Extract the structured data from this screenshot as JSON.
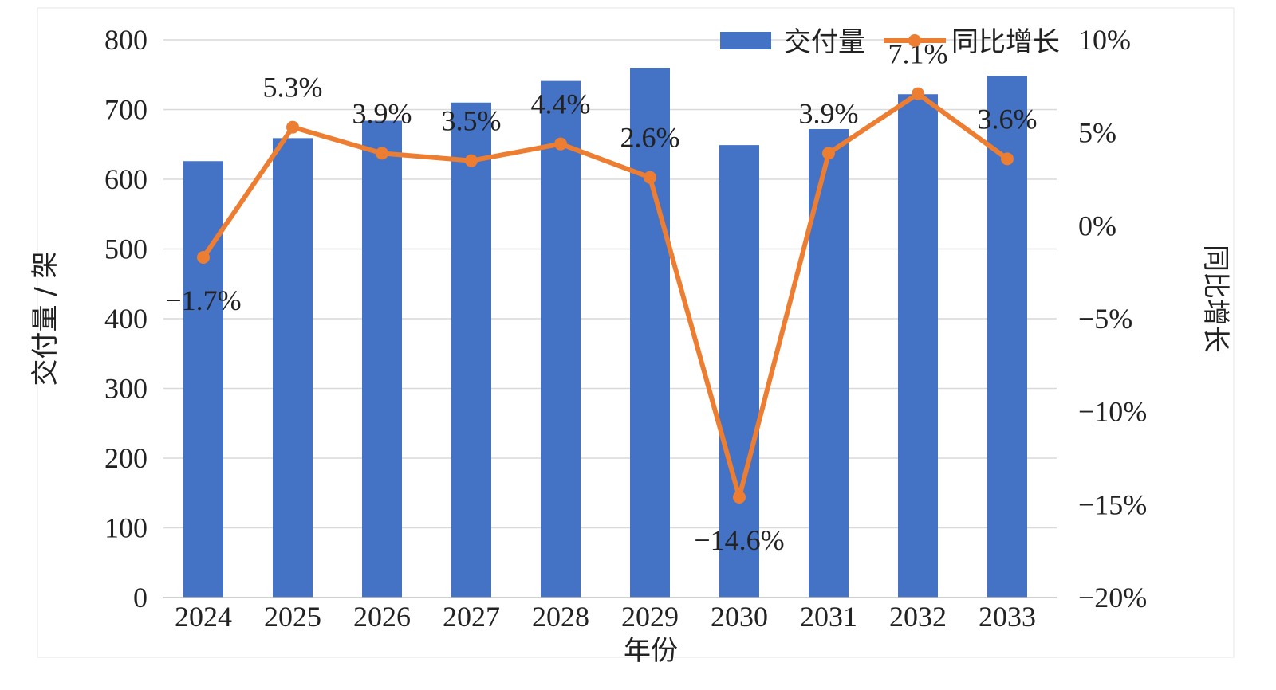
{
  "chart_data": {
    "type": "bar+line",
    "categories": [
      "2024",
      "2025",
      "2026",
      "2027",
      "2028",
      "2029",
      "2030",
      "2031",
      "2032",
      "2033"
    ],
    "series": [
      {
        "name": "交付量",
        "type": "bar",
        "axis": "left",
        "color": "#4472C4",
        "values": [
          626,
          659,
          684,
          710,
          741,
          760,
          649,
          672,
          722,
          748
        ]
      },
      {
        "name": "同比增长",
        "type": "line",
        "axis": "right",
        "color": "#ED7D31",
        "values": [
          -1.7,
          5.3,
          3.9,
          3.5,
          4.4,
          2.6,
          -14.6,
          3.9,
          7.1,
          3.6
        ],
        "labels": [
          "-1.7%",
          "5.3%",
          "3.9%",
          "3.5%",
          "4.4%",
          "2.6%",
          "-14.6%",
          "3.9%",
          "7.1%",
          "3.6%"
        ]
      }
    ],
    "xlabel": "年份",
    "ylabel": "交付量 / 架",
    "y2label": "同比增长",
    "ylim": [
      0,
      800
    ],
    "yticks": [
      "0",
      "100",
      "200",
      "300",
      "400",
      "500",
      "600",
      "700",
      "800"
    ],
    "y2lim": [
      -20,
      10
    ],
    "y2ticks": [
      "-20%",
      "-15%",
      "-10%",
      "-5%",
      "0%",
      "5%",
      "10%"
    ],
    "grid": true,
    "legend": "top-right"
  }
}
